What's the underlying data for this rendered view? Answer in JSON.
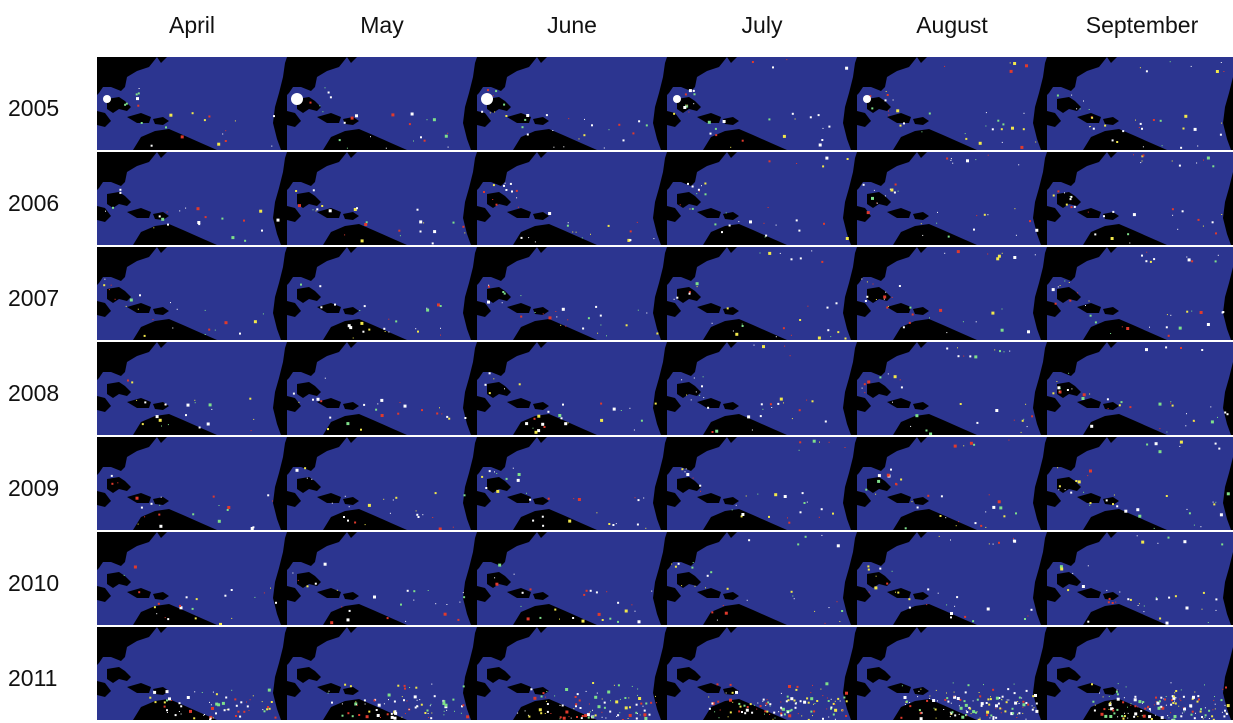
{
  "figure": {
    "columns": [
      "April",
      "May",
      "June",
      "July",
      "August",
      "September"
    ],
    "rows": [
      "2005",
      "2006",
      "2007",
      "2008",
      "2009",
      "2010",
      "2011"
    ],
    "colors": {
      "ocean": "#2c3590",
      "land": "#000000",
      "speck_white": "#ffffff",
      "speck_yellow": "#f2e84b",
      "speck_green": "#7fe08a",
      "speck_red": "#e03a2c",
      "grid_lines": "#ffffff"
    }
  }
}
